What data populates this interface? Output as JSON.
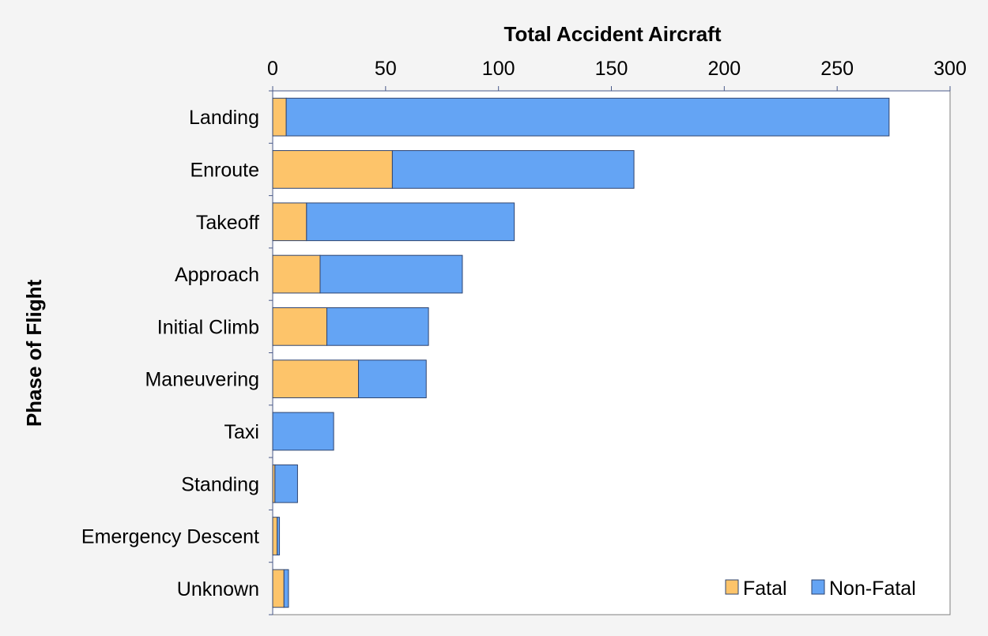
{
  "chart_data": {
    "type": "bar",
    "orientation": "horizontal",
    "stacked": true,
    "xlabel": "Total Accident Aircraft",
    "ylabel": "Phase of Flight",
    "xlim": [
      0,
      300
    ],
    "xticks": [
      0,
      50,
      100,
      150,
      200,
      250,
      300
    ],
    "x_axis_position": "top",
    "grid": false,
    "legend_position": "bottom-right",
    "categories": [
      "Landing",
      "Enroute",
      "Takeoff",
      "Approach",
      "Initial Climb",
      "Maneuvering",
      "Taxi",
      "Standing",
      "Emergency Descent",
      "Unknown"
    ],
    "series": [
      {
        "name": "Fatal",
        "color": "#fdc46a",
        "values": [
          6,
          53,
          15,
          21,
          24,
          38,
          0,
          1,
          2,
          5
        ]
      },
      {
        "name": "Non-Fatal",
        "color": "#64a4f4",
        "values": [
          267,
          107,
          92,
          63,
          45,
          30,
          27,
          10,
          1,
          2
        ]
      }
    ]
  }
}
